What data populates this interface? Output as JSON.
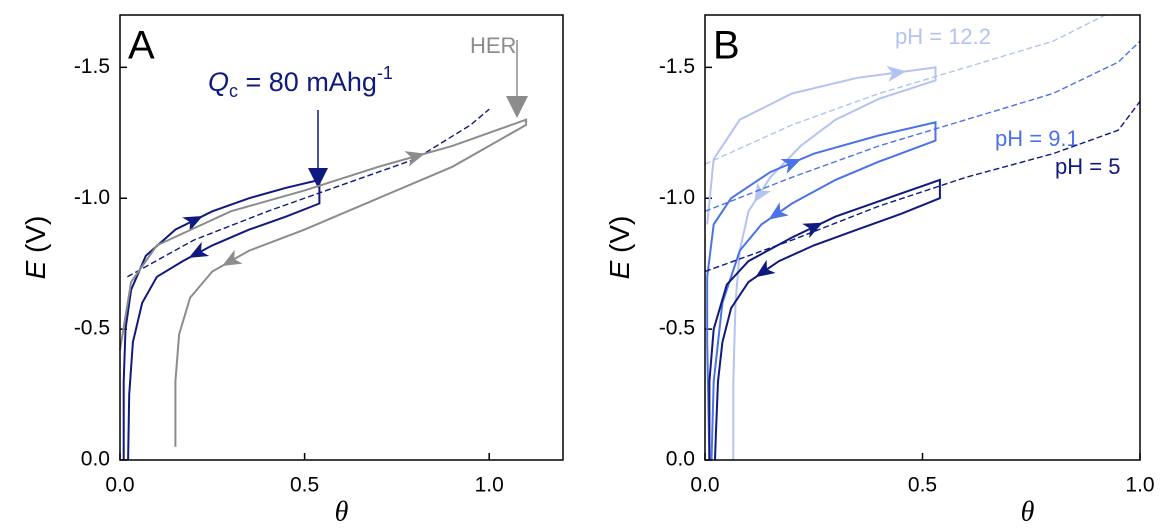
{
  "chart_data": [
    {
      "type": "line",
      "title": "A",
      "xlabel": "θ",
      "ylabel_symbol": "E",
      "ylabel_unit": " (V)",
      "xlim": [
        0,
        1.2
      ],
      "ylim": [
        0,
        -1.7
      ],
      "xticks": [
        {
          "value": 0,
          "label": "0.0"
        },
        0.5,
        {
          "value": 1.0,
          "label": "1.0"
        }
      ],
      "yticks": [
        {
          "value": 0,
          "label": "0.0"
        },
        -0.5,
        {
          "value": -1.0,
          "label": "-1.0"
        },
        -1.5
      ],
      "annotation": {
        "symbol": "Q",
        "subscript": "c",
        "text": " = 80 mAhg",
        "superscript": "-1"
      },
      "series": [
        {
          "color": "#10197f",
          "dashed": false,
          "x": [
            0.01,
            0.01,
            0.015,
            0.03,
            0.07,
            0.15,
            0.25,
            0.35,
            0.45,
            0.54,
            0.54,
            0.45,
            0.35,
            0.25,
            0.17,
            0.1,
            0.06,
            0.035,
            0.025,
            0.022
          ],
          "values": [
            0,
            -0.3,
            -0.5,
            -0.65,
            -0.78,
            -0.88,
            -0.95,
            -1.0,
            -1.04,
            -1.07,
            -0.98,
            -0.93,
            -0.88,
            -0.82,
            -0.76,
            -0.7,
            -0.6,
            -0.45,
            -0.25,
            0
          ]
        },
        {
          "color": "#10197f",
          "dashed": true,
          "x": [
            0.02,
            0.2,
            0.4,
            0.6,
            0.8,
            0.95,
            1.0
          ],
          "values": [
            -0.7,
            -0.84,
            -0.95,
            -1.05,
            -1.15,
            -1.28,
            -1.34
          ]
        },
        {
          "name": "HER",
          "color": "#8c8c8c",
          "dashed": false,
          "x": [
            0.0,
            0.03,
            0.1,
            0.3,
            0.5,
            0.7,
            0.9,
            1.1,
            1.1,
            0.9,
            0.7,
            0.5,
            0.35,
            0.25,
            0.19,
            0.16,
            0.15,
            0.15
          ],
          "values": [
            -0.42,
            -0.68,
            -0.82,
            -0.95,
            -1.03,
            -1.12,
            -1.2,
            -1.3,
            -1.28,
            -1.12,
            -1.0,
            -0.88,
            -0.8,
            -0.72,
            -0.62,
            -0.48,
            -0.3,
            -0.05
          ]
        }
      ]
    },
    {
      "type": "line",
      "title": "B",
      "xlabel": "θ",
      "ylabel_symbol": "E",
      "ylabel_unit": " (V)",
      "xlim": [
        0,
        1.0
      ],
      "ylim": [
        0,
        -1.7
      ],
      "xticks": [
        {
          "value": 0,
          "label": "0.0"
        },
        0.5,
        {
          "value": 1.0,
          "label": "1.0"
        }
      ],
      "yticks": [
        {
          "value": 0,
          "label": "0.0"
        },
        -0.5,
        {
          "value": -1.0,
          "label": "-1.0"
        },
        -1.5
      ],
      "series": [
        {
          "name": "pH = 12.2",
          "color": "#b3c3f2",
          "dashed": false,
          "x": [
            0.005,
            0.02,
            0.08,
            0.2,
            0.35,
            0.53,
            0.53,
            0.4,
            0.3,
            0.22,
            0.15,
            0.1,
            0.08,
            0.07,
            0.065,
            0.065
          ],
          "values": [
            -0.9,
            -1.15,
            -1.3,
            -1.4,
            -1.46,
            -1.5,
            -1.45,
            -1.38,
            -1.3,
            -1.2,
            -1.08,
            -0.95,
            -0.8,
            -0.6,
            -0.3,
            0
          ]
        },
        {
          "color": "#b3c3f2",
          "dashed": true,
          "x": [
            0.0,
            0.2,
            0.4,
            0.6,
            0.8,
            0.92
          ],
          "values": [
            -1.13,
            -1.28,
            -1.4,
            -1.5,
            -1.6,
            -1.7
          ]
        },
        {
          "name": "pH = 9.1",
          "color": "#4c72e8",
          "dashed": false,
          "x": [
            0.01,
            0.005,
            0.005,
            0.02,
            0.06,
            0.15,
            0.25,
            0.4,
            0.53,
            0.53,
            0.4,
            0.3,
            0.2,
            0.13,
            0.08,
            0.04,
            0.02,
            0.015
          ],
          "values": [
            0,
            -0.45,
            -0.7,
            -0.9,
            -1.0,
            -1.1,
            -1.17,
            -1.24,
            -1.29,
            -1.22,
            -1.14,
            -1.07,
            -0.98,
            -0.9,
            -0.8,
            -0.6,
            -0.3,
            0
          ]
        },
        {
          "color": "#4c72e8",
          "dashed": true,
          "x": [
            0.0,
            0.2,
            0.4,
            0.6,
            0.8,
            0.95,
            1.0
          ],
          "values": [
            -0.95,
            -1.08,
            -1.2,
            -1.3,
            -1.4,
            -1.52,
            -1.6
          ]
        },
        {
          "name": "pH = 5",
          "color": "#10197f",
          "dashed": false,
          "x": [
            0.01,
            0.01,
            0.02,
            0.05,
            0.1,
            0.2,
            0.3,
            0.42,
            0.54,
            0.54,
            0.45,
            0.35,
            0.25,
            0.17,
            0.1,
            0.06,
            0.04,
            0.03,
            0.025,
            0.023
          ],
          "values": [
            0,
            -0.3,
            -0.5,
            -0.67,
            -0.76,
            -0.85,
            -0.93,
            -1.0,
            -1.07,
            -1.0,
            -0.94,
            -0.88,
            -0.82,
            -0.76,
            -0.68,
            -0.58,
            -0.45,
            -0.3,
            -0.1,
            0
          ]
        },
        {
          "color": "#10197f",
          "dashed": true,
          "x": [
            0.0,
            0.2,
            0.4,
            0.6,
            0.8,
            0.95,
            1.0
          ],
          "values": [
            -0.72,
            -0.84,
            -0.97,
            -1.08,
            -1.17,
            -1.26,
            -1.37
          ]
        }
      ]
    }
  ]
}
